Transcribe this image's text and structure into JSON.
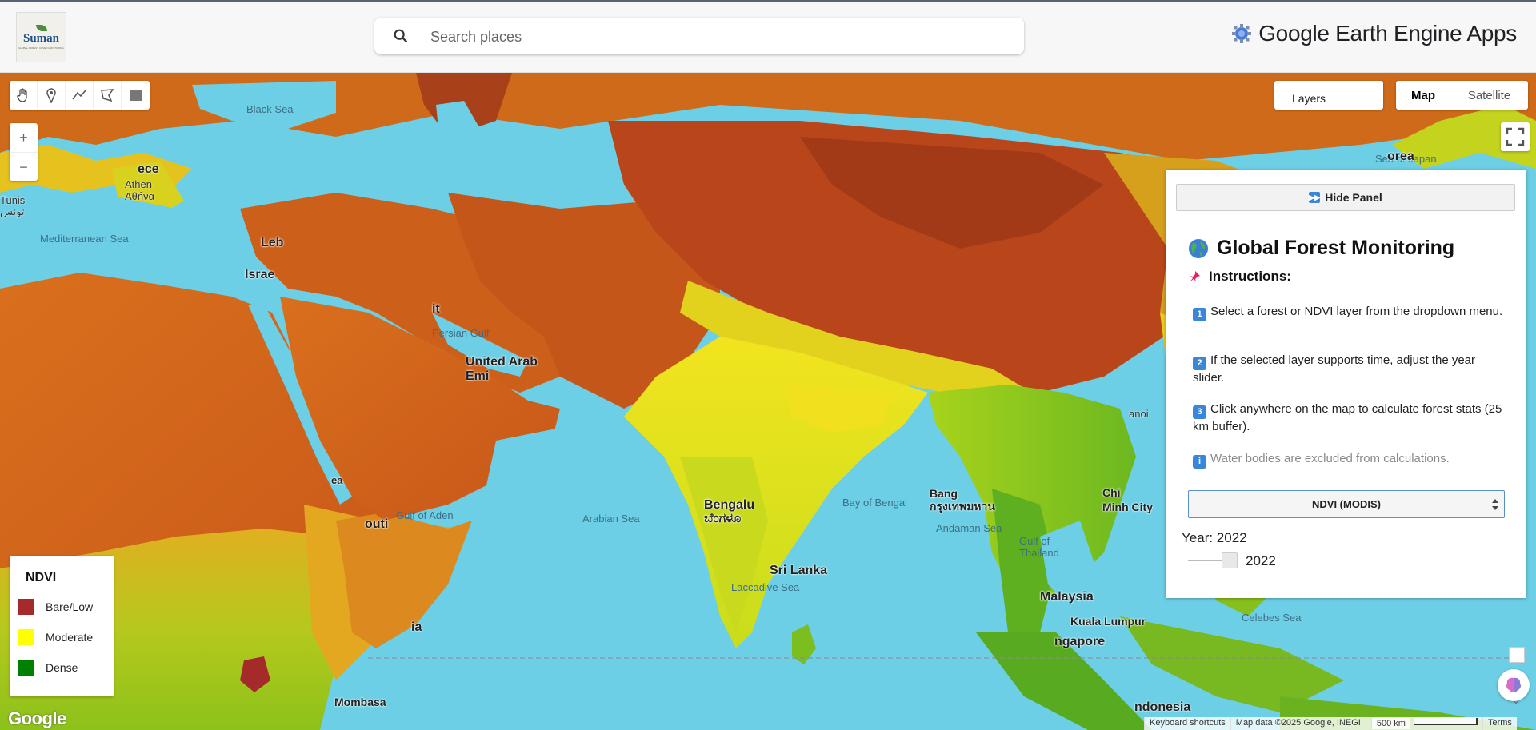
{
  "header": {
    "logo_text": "Suman",
    "logo_subtext": "GLOBAL FOREST COVER MONITORING",
    "search_placeholder": "Search places",
    "brand": "Google Earth Engine Apps"
  },
  "map": {
    "layers_label": "Layers",
    "map_type": [
      "Map",
      "Satellite"
    ],
    "selected_map_type": "Map",
    "zoom_in": "+",
    "zoom_out": "−",
    "labels": {
      "black_sea": "Black Sea",
      "mediterranean": "Mediterranean Sea",
      "arabian_sea": "Arabian Sea",
      "bay_of_bengal": "Bay of Bengal",
      "gulf_of_aden": "Gulf of Aden",
      "andaman_sea": "Andaman Sea",
      "gulf_of_thailand": "Gulf of\nThailand",
      "laccadive_sea": "Laccadive Sea",
      "sea_of_japan": "Sea of Japan",
      "celebes_sea": "Celebes Sea",
      "persian_gulf": "Persian Gulf",
      "israel": "Israe",
      "leb": "Leb",
      "uae": "United Arab\nEmi",
      "it": "it",
      "sri_lanka": "Sri Lanka",
      "bengaluru": "Bengalu\nಬೆಂಗಳೂ",
      "chi_minh": "Chi\nMinh City",
      "bangkok": "Bang\nกรุงเทพมหาน",
      "malaysia": "Malaysia",
      "kuala_lumpur": "Kuala Lumpur",
      "singapore": "ngapore",
      "indonesia": "ndonesia",
      "mombasa": "Mombasa",
      "korea": "orea",
      "tunis": "Tunis\nتونس",
      "athens": "Athen\nΑθήνα",
      "ece": "ece",
      "hanoi": "anoi",
      "outi": "outi",
      "ea": "ea",
      "ia": "ia"
    }
  },
  "legend": {
    "title": "NDVI",
    "items": [
      {
        "label": "Bare/Low",
        "color": "#a52a2a"
      },
      {
        "label": "Moderate",
        "color": "#ffff00"
      },
      {
        "label": "Dense",
        "color": "#008000"
      }
    ]
  },
  "panel": {
    "hide_button": "Hide Panel",
    "title": "Global Forest Monitoring",
    "instructions_title": "Instructions:",
    "steps": [
      {
        "num": "1",
        "text": "Select a forest or NDVI layer from the dropdown menu."
      },
      {
        "num": "2",
        "text": "If the selected layer supports time, adjust the year slider."
      },
      {
        "num": "3",
        "text": "Click anywhere on the map to calculate forest stats (25 km buffer)."
      }
    ],
    "note": "Water bodies are excluded from calculations.",
    "layer_select": "NDVI (MODIS)",
    "year_label": "Year: 2022",
    "slider_value": "2022"
  },
  "footer": {
    "google": "Google",
    "keyboard": "Keyboard shortcuts",
    "map_data": "Map data ©2025 Google, INEGI",
    "scale": "500 km",
    "terms": "Terms"
  }
}
